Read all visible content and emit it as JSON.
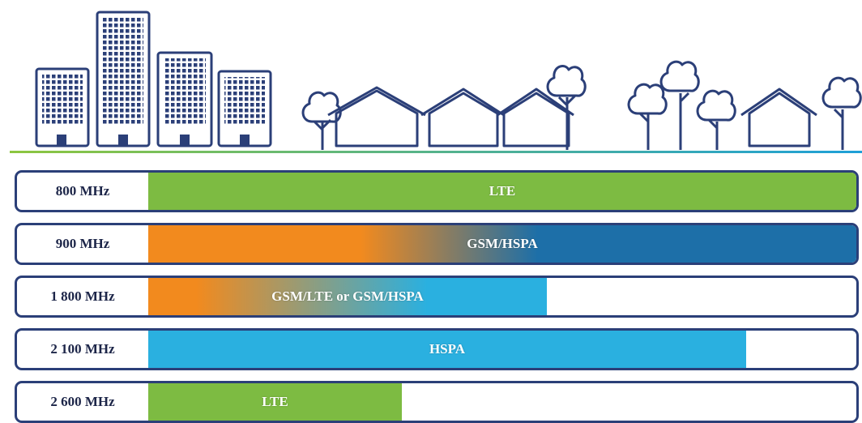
{
  "rows": [
    {
      "band": "800 MHz",
      "technology": "LTE"
    },
    {
      "band": "900 MHz",
      "technology": "GSM/HSPA"
    },
    {
      "band": "1 800 MHz",
      "technology": "GSM/LTE or GSM/HSPA"
    },
    {
      "band": "2 100 MHz",
      "technology": "HSPA"
    },
    {
      "band": "2 600 MHz",
      "technology": "LTE"
    }
  ]
}
